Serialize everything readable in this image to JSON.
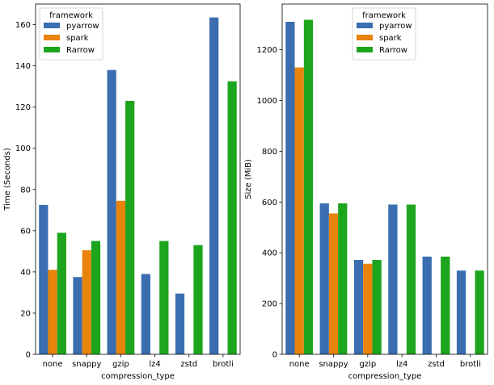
{
  "colors": {
    "pyarrow": "#3a6eb0",
    "spark": "#e8830b",
    "Rarrow": "#1ea51e"
  },
  "chart_data": [
    {
      "type": "bar",
      "title": "",
      "xlabel": "compression_type",
      "ylabel": "Time (Seconds)",
      "categories": [
        "none",
        "snappy",
        "gzip",
        "lz4",
        "zstd",
        "brotli"
      ],
      "ylim": [
        0,
        170
      ],
      "yticks": [
        0,
        20,
        40,
        60,
        80,
        100,
        120,
        140,
        160
      ],
      "legend": {
        "title": "framework",
        "placement": "top-left"
      },
      "series": [
        {
          "name": "pyarrow",
          "values": [
            72.5,
            37.5,
            138,
            39,
            29.5,
            163.5
          ]
        },
        {
          "name": "spark",
          "values": [
            41,
            50.5,
            74.5,
            null,
            null,
            null
          ]
        },
        {
          "name": "Rarrow",
          "values": [
            59,
            55,
            123,
            55,
            53,
            132.5
          ]
        }
      ]
    },
    {
      "type": "bar",
      "title": "",
      "xlabel": "compression_type",
      "ylabel": "Size (MiB)",
      "categories": [
        "none",
        "snappy",
        "gzip",
        "lz4",
        "zstd",
        "brotli"
      ],
      "ylim": [
        0,
        1380
      ],
      "yticks": [
        0,
        200,
        400,
        600,
        800,
        1000,
        1200
      ],
      "legend": {
        "title": "framework",
        "placement": "top-center"
      },
      "series": [
        {
          "name": "pyarrow",
          "values": [
            1310,
            595,
            372,
            590,
            385,
            330
          ]
        },
        {
          "name": "spark",
          "values": [
            1130,
            555,
            357,
            null,
            null,
            null
          ]
        },
        {
          "name": "Rarrow",
          "values": [
            1318,
            595,
            372,
            590,
            385,
            330
          ]
        }
      ]
    }
  ]
}
